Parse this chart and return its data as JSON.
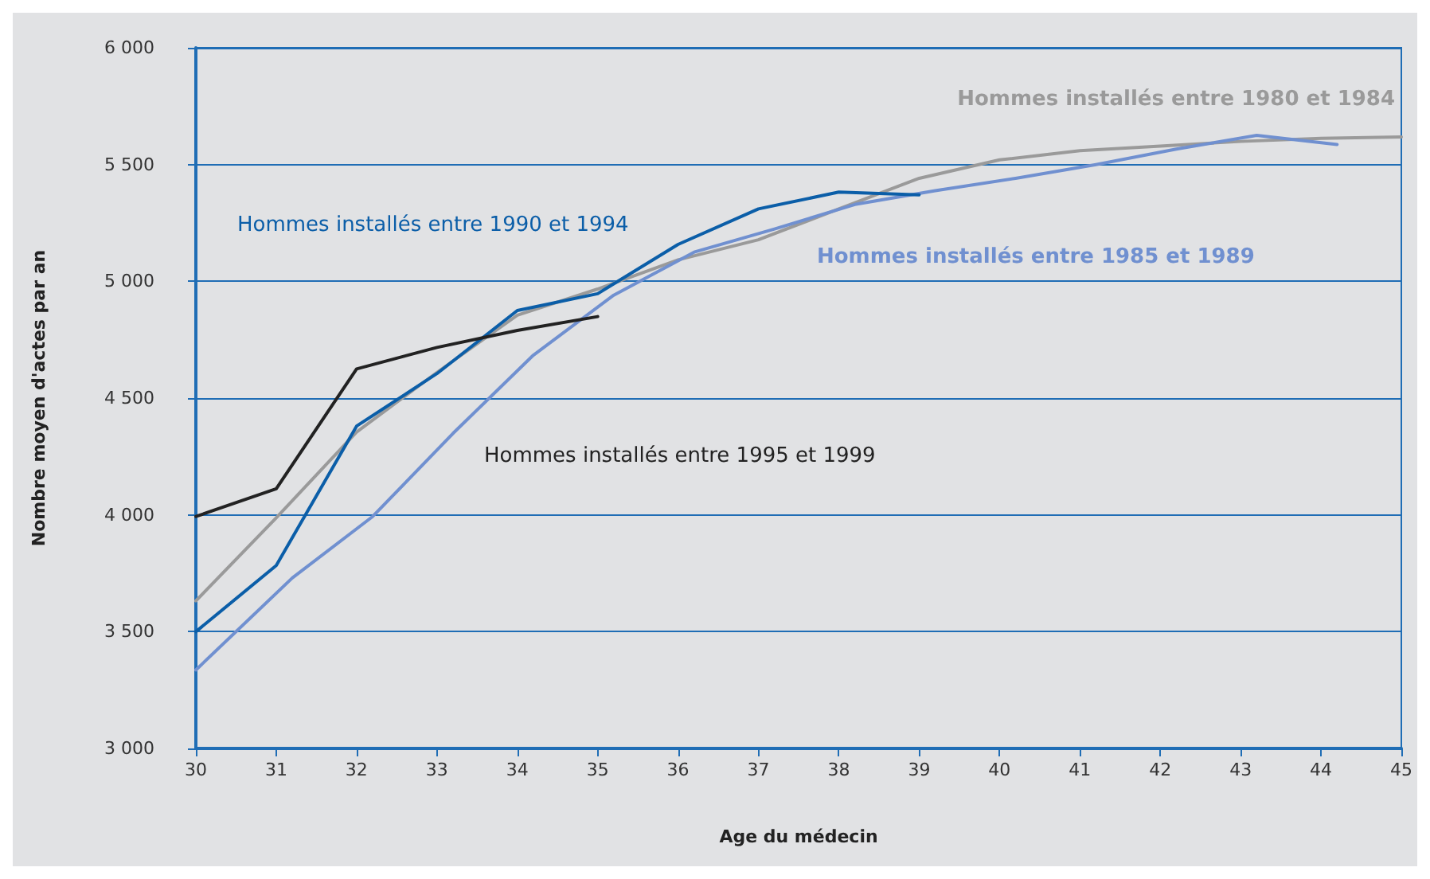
{
  "chart_data": {
    "type": "line",
    "xlabel": "Age du médecin",
    "ylabel": "Nombre moyen d'actes par an",
    "xlim": [
      30,
      45
    ],
    "xticks": [
      30,
      31,
      32,
      33,
      34,
      35,
      36,
      37,
      38,
      39,
      40,
      41,
      42,
      43,
      44,
      45
    ],
    "ylim": [
      3000,
      6000
    ],
    "yticks": [
      {
        "value": 3000,
        "label": "3 000"
      },
      {
        "value": 3500,
        "label": "3 500"
      },
      {
        "value": 4000,
        "label": "4 000"
      },
      {
        "value": 4500,
        "label": "4 500"
      },
      {
        "value": 5000,
        "label": "5 000"
      },
      {
        "value": 5500,
        "label": "5 500"
      },
      {
        "value": 6000,
        "label": "6 000"
      }
    ],
    "grid": "y",
    "legend": false,
    "marker": "none",
    "line_style": "solid",
    "series": [
      {
        "name": "Hommes installés entre 1980 et 1984",
        "color": "#9a9a9a",
        "x": [
          30,
          31,
          32,
          33,
          34,
          35,
          36,
          37,
          38,
          39,
          40,
          41,
          42,
          43,
          44,
          45
        ],
        "values": [
          3632,
          3987,
          4355,
          4610,
          4855,
          4967,
          5092,
          5178,
          5310,
          5441,
          5520,
          5559,
          5579,
          5599,
          5612,
          5618
        ]
      },
      {
        "name": "Hommes installés entre 1985 et 1989",
        "color": "#7090d0",
        "x": [
          30,
          31.2,
          32.2,
          33.2,
          34.2,
          35.2,
          36.2,
          37.2,
          38.2,
          39.2,
          40.2,
          41.2,
          42.2,
          43.2,
          44.2
        ],
        "values": [
          3336,
          3730,
          3993,
          4349,
          4684,
          4941,
          5125,
          5224,
          5329,
          5388,
          5441,
          5500,
          5566,
          5625,
          5586
        ]
      },
      {
        "name": "Hommes installés entre 1990 et 1994",
        "color": "#0b5ea8",
        "x": [
          30,
          31,
          32,
          33,
          34,
          35,
          36,
          37,
          38,
          39
        ],
        "values": [
          3500,
          3783,
          4380,
          4605,
          4875,
          4947,
          5158,
          5310,
          5382,
          5370
        ]
      },
      {
        "name": "Hommes installés entre 1995 et 1999",
        "color": "#222222",
        "x": [
          30,
          31,
          32,
          33,
          34,
          35
        ],
        "values": [
          3993,
          4112,
          4625,
          4717,
          4790,
          4849
        ]
      }
    ]
  }
}
